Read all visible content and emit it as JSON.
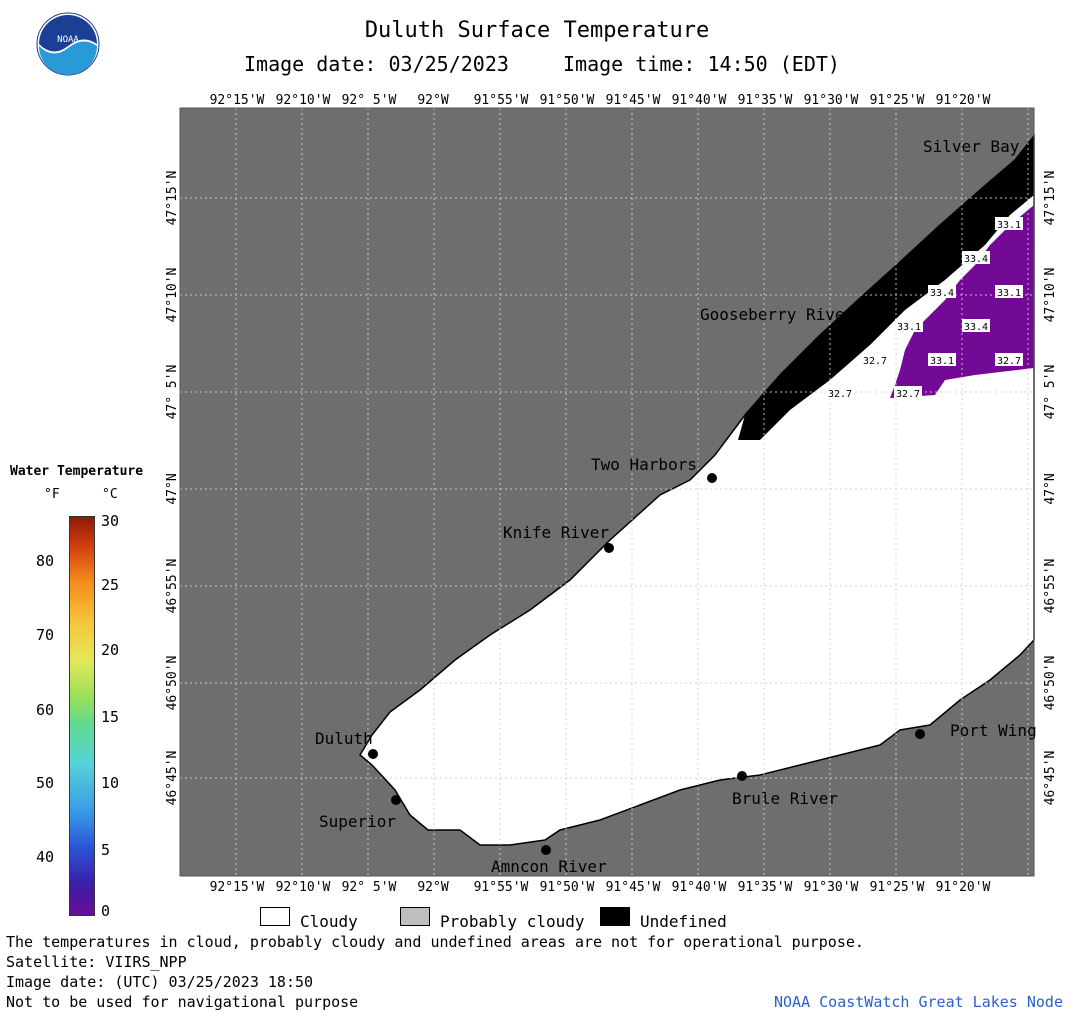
{
  "header": {
    "title": "Duluth Surface Temperature",
    "image_date_label": "Image date: 03/25/2023",
    "image_time_label": "Image time: 14:50 (EDT)"
  },
  "logo": {
    "text": "NOAA",
    "icon": "noaa-logo"
  },
  "map": {
    "top_lon_labels": [
      "92°15'W",
      "92°10'W",
      "92° 5'W",
      "92°W",
      "91°55'W",
      "91°50'W",
      "91°45'W",
      "91°40'W",
      "91°35'W",
      "91°30'W",
      "91°25'W",
      "91°20'W"
    ],
    "bottom_lon_labels": [
      "92°15'W",
      "92°10'W",
      "92° 5'W",
      "92°W",
      "91°55'W",
      "91°50'W",
      "91°45'W",
      "91°40'W",
      "91°35'W",
      "91°30'W",
      "91°25'W",
      "91°20'W"
    ],
    "left_lat_labels": [
      "47°15'N",
      "47°10'N",
      "47° 5'N",
      "47°N",
      "46°55'N",
      "46°50'N",
      "46°45'N"
    ],
    "right_lat_labels": [
      "47°15'N",
      "47°10'N",
      "47° 5'N",
      "47°N",
      "46°55'N",
      "46°50'N",
      "46°45'N"
    ],
    "places": {
      "silver_bay": "Silver Bay",
      "gooseberry_river": "Gooseberry River",
      "two_harbors": "Two Harbors",
      "knife_river": "Knife River",
      "duluth": "Duluth",
      "superior": "Superior",
      "amnicon_river": "Amncon River",
      "brule_river": "Brule River",
      "port_wing": "Port Wing"
    },
    "temps": [
      "33.1",
      "33.4",
      "33.4",
      "33.1",
      "33.1",
      "33.4",
      "32.7",
      "33.1",
      "32.7",
      "32.7",
      "32.7"
    ]
  },
  "colorbar": {
    "title": "Water Temperature",
    "unit_f": "°F",
    "unit_c": "°C",
    "f_ticks": [
      "80",
      "70",
      "60",
      "50",
      "40"
    ],
    "c_ticks": [
      "30",
      "25",
      "20",
      "15",
      "10",
      "5",
      "0"
    ]
  },
  "legend": {
    "cloudy": "Cloudy",
    "probably_cloudy": "Probably cloudy",
    "undefined": "Undefined",
    "colors": {
      "cloudy": "#ffffff",
      "probably_cloudy": "#bebebe",
      "undefined": "#000000"
    }
  },
  "footer": {
    "line1": "The temperatures in cloud, probably cloudy and undefined areas are not for operational purpose.",
    "line2": "Satellite: VIIRS_NPP",
    "line3": "Image date: (UTC) 03/25/2023  18:50",
    "line4": "Not to be used for navigational purpose",
    "credit": "NOAA CoastWatch Great Lakes Node"
  },
  "colors": {
    "land": "#6e6e6e",
    "cold_water": "#720a96",
    "credit": "#2a62c9"
  }
}
